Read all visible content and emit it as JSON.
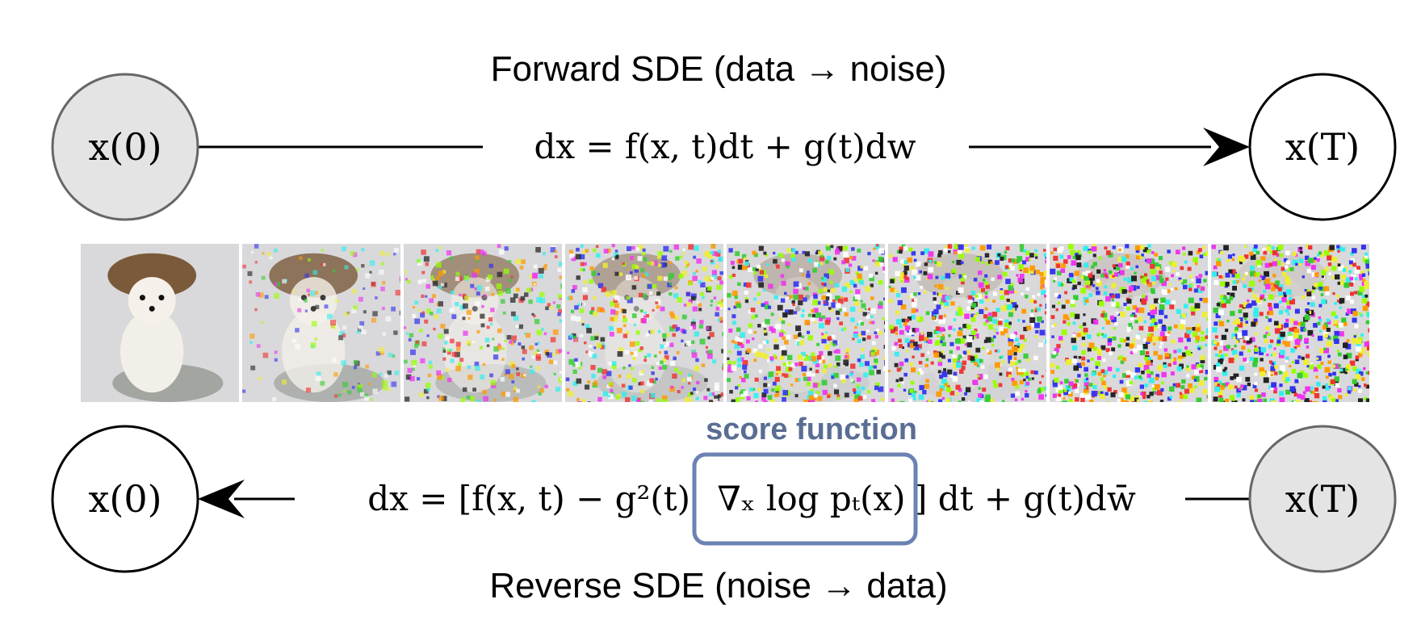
{
  "forward": {
    "title": "Forward SDE (data → noise)",
    "equation": "dx = f(x, t)dt + g(t)dw",
    "start_node": "x(0)",
    "end_node": "x(T)"
  },
  "reverse": {
    "title": "Reverse SDE (noise → data)",
    "equation_part1": "dx = [f(x, t) − g²(t)",
    "equation_score": "∇ₓ log pₜ(x)",
    "equation_part2": "] dt + g(t)dw̄",
    "start_node": "x(T)",
    "end_node": "x(0)"
  },
  "score_label": "score function",
  "colors": {
    "score_box": "#6b82b3",
    "score_label": "#5a6d93",
    "filled_node": "#e4e4e4",
    "node_stroke_filled": "#666666",
    "node_stroke": "#000000"
  },
  "noise_strip": {
    "frame_count": 8,
    "noise_levels": [
      0.0,
      0.22,
      0.45,
      0.62,
      0.8,
      0.9,
      0.96,
      1.0
    ]
  }
}
